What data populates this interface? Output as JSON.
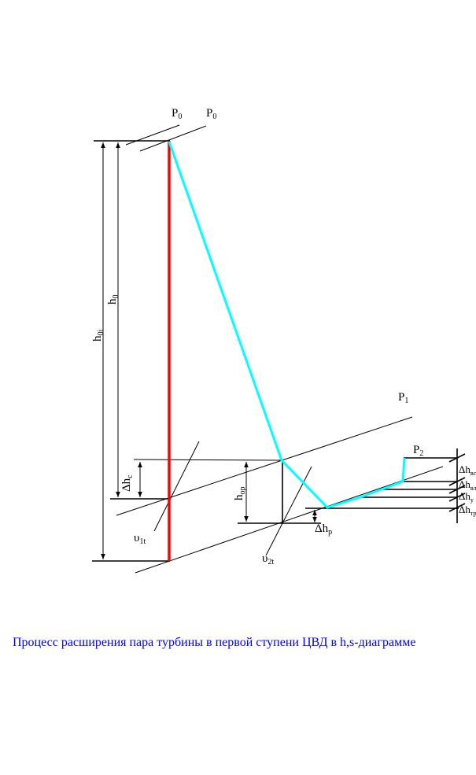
{
  "colors": {
    "isentropic_line": "#ff0000",
    "process_line": "#00ffff",
    "caption_text": "#0000ff",
    "lines": "#000000"
  },
  "labels": {
    "p0_left": {
      "main": "P",
      "sub": "0"
    },
    "p0_right": {
      "main": "P",
      "sub": "0"
    },
    "p1": {
      "main": "P",
      "sub": "1"
    },
    "p2": {
      "main": "P",
      "sub": "2"
    },
    "h0i": {
      "main": "h",
      "sub": "0i"
    },
    "h0": {
      "main": "h",
      "sub": "0"
    },
    "dhc": {
      "main": "Δh",
      "sub": "c"
    },
    "hop": {
      "main": "h",
      "sub": "op"
    },
    "dhp": {
      "main": "Δh",
      "sub": "p"
    },
    "v1t": {
      "main": "υ",
      "sub": "1t"
    },
    "v2t": {
      "main": "υ",
      "sub": "2t"
    },
    "dhvc": {
      "main": "Δh",
      "sub": "вс"
    },
    "dhvl": {
      "main": "Δh",
      "sub": "вл"
    },
    "dhy": {
      "main": "Δh",
      "sub": "у"
    },
    "dhtr": {
      "main": "Δh",
      "sub": "тр"
    }
  },
  "caption": "Процесс расширения пара турбины в первой ступени ЦВД в h,s-диаграмме"
}
